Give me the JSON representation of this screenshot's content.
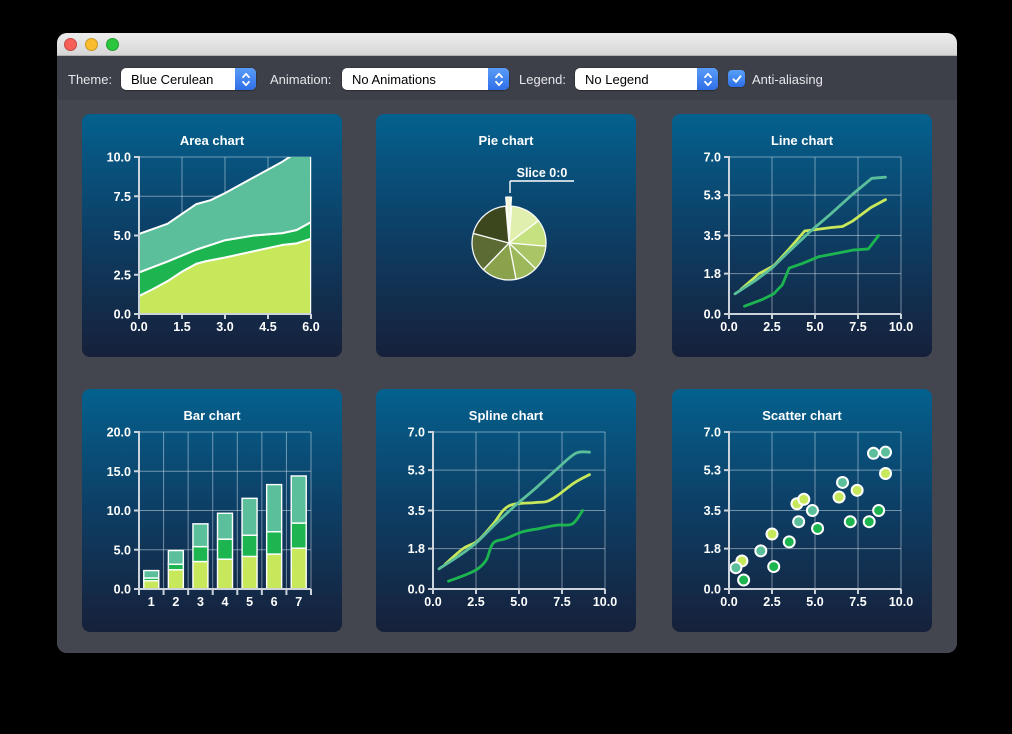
{
  "window": {
    "titlebar": {
      "traffic_lights": [
        {
          "name": "close",
          "color": "#f75f58"
        },
        {
          "name": "minimize",
          "color": "#f9bd2e"
        },
        {
          "name": "zoom",
          "color": "#2bc63d"
        }
      ]
    },
    "toolbar": {
      "theme_label": "Theme:",
      "theme_value": "Blue Cerulean",
      "animation_label": "Animation:",
      "animation_value": "No Animations",
      "legend_label": "Legend:",
      "legend_value": "No Legend",
      "antialiasing_label": "Anti-aliasing",
      "antialiasing_checked": true
    }
  },
  "theme": {
    "panel_gradient_top": "#04618e",
    "panel_gradient_mid": "#0d3f66",
    "panel_gradient_bottom": "#16203a",
    "toolbar_bg": "#3d4049",
    "content_bg": "#43464f",
    "axis_color": "#ccd3da",
    "grid_color": "rgba(215,228,238,0.5)",
    "text_color": "#ffffff",
    "series_colors": [
      "#c7e85b",
      "#1cb54f",
      "#5cbf9b"
    ],
    "accent_blue": "#3273f0"
  },
  "chart_data": [
    {
      "type": "area",
      "title": "Area chart",
      "xlim": [
        0,
        6
      ],
      "ylim": [
        0,
        10
      ],
      "xticks": [
        0,
        1.5,
        3,
        4.5,
        6
      ],
      "xtick_labels": [
        "0.0",
        "1.5",
        "3.0",
        "4.5",
        "6.0"
      ],
      "yticks": [
        0,
        2.5,
        5,
        7.5,
        10
      ],
      "ytick_labels": [
        "0.0",
        "2.5",
        "5.0",
        "7.5",
        "10.0"
      ],
      "grid": true,
      "legend": "none",
      "series": [
        {
          "name": "area-1",
          "color": "#c7e85b",
          "points": [
            [
              0,
              1.15
            ],
            [
              0.5,
              1.6
            ],
            [
              1,
              2.1
            ],
            [
              1.5,
              2.7
            ],
            [
              2,
              3.2
            ],
            [
              2.3,
              3.35
            ],
            [
              3,
              3.6
            ],
            [
              4,
              4.0
            ],
            [
              5,
              4.4
            ],
            [
              5.5,
              4.5
            ],
            [
              6,
              4.8
            ]
          ]
        },
        {
          "name": "area-2",
          "color": "#1cb54f",
          "points": [
            [
              0,
              2.65
            ],
            [
              1,
              3.35
            ],
            [
              2,
              4.1
            ],
            [
              2.5,
              4.4
            ],
            [
              3,
              4.7
            ],
            [
              4,
              5.0
            ],
            [
              5,
              5.15
            ],
            [
              5.5,
              5.35
            ],
            [
              6,
              5.85
            ]
          ]
        },
        {
          "name": "area-3",
          "color": "#5cbf9b",
          "points": [
            [
              0,
              5.1
            ],
            [
              0.7,
              5.55
            ],
            [
              1,
              5.75
            ],
            [
              2,
              7.0
            ],
            [
              2.5,
              7.25
            ],
            [
              3,
              7.7
            ],
            [
              4,
              8.7
            ],
            [
              5,
              9.7
            ],
            [
              6,
              10.9
            ]
          ]
        }
      ]
    },
    {
      "type": "pie",
      "title": "Pie chart",
      "callout_label": "Slice 0:0",
      "slices": [
        {
          "label": "Slice 0:0",
          "start": 355,
          "end": 4,
          "color": "#f2f7da",
          "exploded": true
        },
        {
          "start": 4,
          "end": 53,
          "color": "#e0efae"
        },
        {
          "start": 53,
          "end": 95,
          "color": "#c6e180"
        },
        {
          "start": 95,
          "end": 134,
          "color": "#a9c566"
        },
        {
          "start": 134,
          "end": 169,
          "color": "#9cb85a"
        },
        {
          "start": 169,
          "end": 224,
          "color": "#8aa24c"
        },
        {
          "start": 224,
          "end": 285,
          "color": "#5c6a34"
        },
        {
          "start": 285,
          "end": 355,
          "color": "#3c471e"
        }
      ]
    },
    {
      "type": "line",
      "title": "Line chart",
      "xlim": [
        0,
        10
      ],
      "ylim": [
        0,
        7
      ],
      "xticks": [
        0,
        2.5,
        5,
        7.5,
        10
      ],
      "xtick_labels": [
        "0.0",
        "2.5",
        "5.0",
        "7.5",
        "10.0"
      ],
      "yticks": [
        0,
        1.8,
        3.5,
        5.3,
        7
      ],
      "ytick_labels": [
        "0.0",
        "1.8",
        "3.5",
        "5.3",
        "7.0"
      ],
      "grid": true,
      "legend": "none",
      "series": [
        {
          "name": "line-yellow",
          "color": "#c7e85b",
          "points": [
            [
              0.7,
              1.1
            ],
            [
              1.75,
              1.8
            ],
            [
              2.6,
              2.15
            ],
            [
              3.5,
              2.9
            ],
            [
              4.4,
              3.7
            ],
            [
              5.9,
              3.85
            ],
            [
              6.6,
              3.9
            ],
            [
              7.2,
              4.15
            ],
            [
              8.25,
              4.75
            ],
            [
              9.1,
              5.1
            ]
          ]
        },
        {
          "name": "line-green",
          "color": "#1cb54f",
          "points": [
            [
              0.9,
              0.35
            ],
            [
              1.95,
              0.65
            ],
            [
              2.6,
              0.9
            ],
            [
              3.1,
              1.3
            ],
            [
              3.5,
              2.05
            ],
            [
              4.25,
              2.25
            ],
            [
              5.2,
              2.55
            ],
            [
              6.2,
              2.7
            ],
            [
              7.2,
              2.85
            ],
            [
              8.1,
              2.9
            ],
            [
              8.7,
              3.5
            ]
          ]
        },
        {
          "name": "line-teal",
          "color": "#5cbf9b",
          "points": [
            [
              0.35,
              0.9
            ],
            [
              1.55,
              1.5
            ],
            [
              2.5,
              2.05
            ],
            [
              3.5,
              2.8
            ],
            [
              4.75,
              3.7
            ],
            [
              5.9,
              4.45
            ],
            [
              7.2,
              5.35
            ],
            [
              8.3,
              6.05
            ],
            [
              9.1,
              6.1
            ]
          ]
        }
      ]
    },
    {
      "type": "bar",
      "title": "Bar chart",
      "categories": [
        "1",
        "2",
        "3",
        "4",
        "5",
        "6",
        "7"
      ],
      "ylim": [
        0,
        20
      ],
      "yticks": [
        0,
        5,
        10,
        15,
        20
      ],
      "ytick_labels": [
        "0.0",
        "5.0",
        "10.0",
        "15.0",
        "20.0"
      ],
      "grid": true,
      "legend": "none",
      "series": [
        {
          "name": "bar-yellow",
          "color": "#c7e85b",
          "values": [
            1.05,
            2.45,
            3.5,
            3.8,
            4.15,
            4.45,
            5.2
          ]
        },
        {
          "name": "bar-green",
          "color": "#1cb54f",
          "values": [
            0.35,
            0.7,
            1.9,
            2.55,
            2.7,
            2.85,
            3.2
          ]
        },
        {
          "name": "bar-teal",
          "color": "#5cbf9b",
          "values": [
            0.95,
            1.75,
            2.9,
            3.3,
            4.7,
            6.0,
            6.0
          ]
        }
      ]
    },
    {
      "type": "spline",
      "title": "Spline chart",
      "xlim": [
        0,
        10
      ],
      "ylim": [
        0,
        7
      ],
      "xticks": [
        0,
        2.5,
        5,
        7.5,
        10
      ],
      "xtick_labels": [
        "0.0",
        "2.5",
        "5.0",
        "7.5",
        "10.0"
      ],
      "yticks": [
        0,
        1.8,
        3.5,
        5.3,
        7
      ],
      "ytick_labels": [
        "0.0",
        "1.8",
        "3.5",
        "5.3",
        "7.0"
      ],
      "grid": true,
      "legend": "none",
      "series": [
        {
          "name": "spline-yellow",
          "color": "#c7e85b",
          "points": [
            [
              0.7,
              1.1
            ],
            [
              1.75,
              1.8
            ],
            [
              2.6,
              2.15
            ],
            [
              3.5,
              2.9
            ],
            [
              4.4,
              3.7
            ],
            [
              5.9,
              3.85
            ],
            [
              6.6,
              3.9
            ],
            [
              7.2,
              4.15
            ],
            [
              8.25,
              4.75
            ],
            [
              9.1,
              5.1
            ]
          ]
        },
        {
          "name": "spline-green",
          "color": "#1cb54f",
          "points": [
            [
              0.9,
              0.35
            ],
            [
              1.95,
              0.65
            ],
            [
              2.6,
              0.9
            ],
            [
              3.1,
              1.3
            ],
            [
              3.5,
              2.05
            ],
            [
              4.25,
              2.25
            ],
            [
              5.2,
              2.55
            ],
            [
              6.2,
              2.7
            ],
            [
              7.2,
              2.85
            ],
            [
              8.1,
              2.9
            ],
            [
              8.7,
              3.5
            ]
          ]
        },
        {
          "name": "spline-teal",
          "color": "#5cbf9b",
          "points": [
            [
              0.35,
              0.9
            ],
            [
              1.55,
              1.5
            ],
            [
              2.5,
              2.05
            ],
            [
              3.5,
              2.8
            ],
            [
              4.75,
              3.7
            ],
            [
              5.9,
              4.45
            ],
            [
              7.2,
              5.35
            ],
            [
              8.3,
              6.05
            ],
            [
              9.1,
              6.1
            ]
          ]
        }
      ]
    },
    {
      "type": "scatter",
      "title": "Scatter chart",
      "xlim": [
        0,
        10
      ],
      "ylim": [
        0,
        7
      ],
      "xticks": [
        0,
        2.5,
        5,
        7.5,
        10
      ],
      "xtick_labels": [
        "0.0",
        "2.5",
        "5.0",
        "7.5",
        "10.0"
      ],
      "yticks": [
        0,
        1.8,
        3.5,
        5.3,
        7
      ],
      "ytick_labels": [
        "0.0",
        "1.8",
        "3.5",
        "5.3",
        "7.0"
      ],
      "grid": true,
      "legend": "none",
      "series": [
        {
          "name": "scatter-yellow",
          "color": "#c7e85b",
          "points": [
            [
              0.75,
              1.25
            ],
            [
              2.5,
              2.45
            ],
            [
              3.95,
              3.8
            ],
            [
              4.35,
              4.0
            ],
            [
              6.4,
              4.1
            ],
            [
              7.45,
              4.4
            ],
            [
              9.1,
              5.15
            ]
          ]
        },
        {
          "name": "scatter-green",
          "color": "#1cb54f",
          "points": [
            [
              0.85,
              0.4
            ],
            [
              2.6,
              1.0
            ],
            [
              3.5,
              2.1
            ],
            [
              5.15,
              2.7
            ],
            [
              7.05,
              3.0
            ],
            [
              8.15,
              3.0
            ],
            [
              8.7,
              3.5
            ]
          ]
        },
        {
          "name": "scatter-teal",
          "color": "#5cbf9b",
          "points": [
            [
              0.4,
              0.95
            ],
            [
              1.85,
              1.7
            ],
            [
              4.05,
              3.0
            ],
            [
              4.85,
              3.5
            ],
            [
              6.6,
              4.75
            ],
            [
              8.4,
              6.05
            ],
            [
              9.1,
              6.1
            ]
          ]
        }
      ]
    }
  ]
}
